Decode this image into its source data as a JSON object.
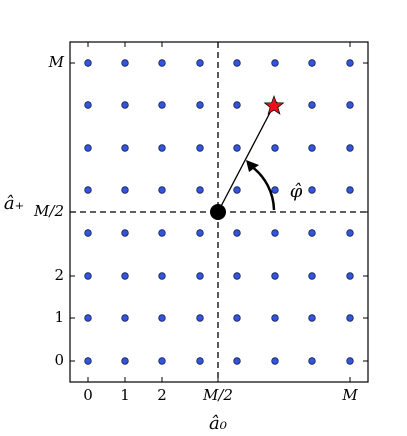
{
  "x_axis": {
    "label": "â₀",
    "ticks": [
      "0",
      "1",
      "2",
      "M/2",
      "M"
    ]
  },
  "y_axis": {
    "label": "â₊",
    "ticks": [
      "0",
      "1",
      "2",
      "M/2",
      "M"
    ]
  },
  "annotation": "φ̂"
}
